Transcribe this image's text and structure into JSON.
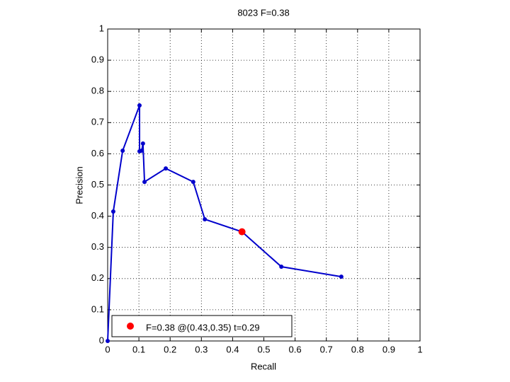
{
  "chart_data": {
    "type": "line",
    "title": "8023 F=0.38",
    "x_label": "Recall",
    "y_label": "Precision",
    "series": [
      {
        "color": "#0000cc",
        "x": [
          0,
          0.018,
          0.048,
          0.102,
          0.102,
          0.109,
          0.113,
          0.118,
          0.186,
          0.274,
          0.311,
          0.43,
          0.556,
          0.748
        ],
        "values": [
          0,
          0.415,
          0.61,
          0.755,
          0.608,
          0.61,
          0.633,
          0.51,
          0.553,
          0.51,
          0.39,
          0.35,
          0.238,
          0.206
        ],
        "style": "line"
      },
      {
        "name": "F=0.38 @(0.43,0.35) t=0.29",
        "color": "#ff0000",
        "x": [
          0.43
        ],
        "values": [
          0.35
        ],
        "style": "point"
      }
    ],
    "xlim": [
      0,
      1
    ],
    "ylim": [
      0,
      1
    ],
    "xticks": [
      0,
      0.1,
      0.2,
      0.3,
      0.4,
      0.5,
      0.6,
      0.7,
      0.8,
      0.9,
      1
    ],
    "yticks": [
      0,
      0.1,
      0.2,
      0.3,
      0.4,
      0.5,
      0.6,
      0.7,
      0.8,
      0.9,
      1
    ],
    "grid": true,
    "legend": "lower left"
  }
}
